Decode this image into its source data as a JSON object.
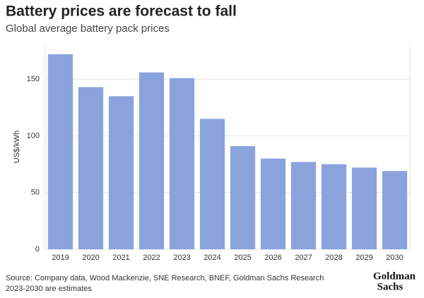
{
  "chart_data": {
    "type": "bar",
    "title": "Battery prices are forecast to fall",
    "subtitle": "Global average battery pack prices",
    "y_label": "US$/kWh",
    "categories": [
      "2019",
      "2020",
      "2021",
      "2022",
      "2023",
      "2024",
      "2025",
      "2026",
      "2027",
      "2028",
      "2029",
      "2030"
    ],
    "values": [
      172,
      143,
      135,
      156,
      151,
      115,
      91,
      80,
      77,
      75,
      72,
      69
    ],
    "color": "#8aa3dc",
    "ylim": [
      0,
      180
    ],
    "yticks": [
      0,
      50,
      100,
      150
    ],
    "grid": true,
    "source": "Source: Company data, Wood Mackenzie, SNE Research, BNEF, Goldman Sachs Research",
    "note": "2023-2030 are estimates",
    "logo": [
      "Goldman",
      "Sachs"
    ]
  }
}
